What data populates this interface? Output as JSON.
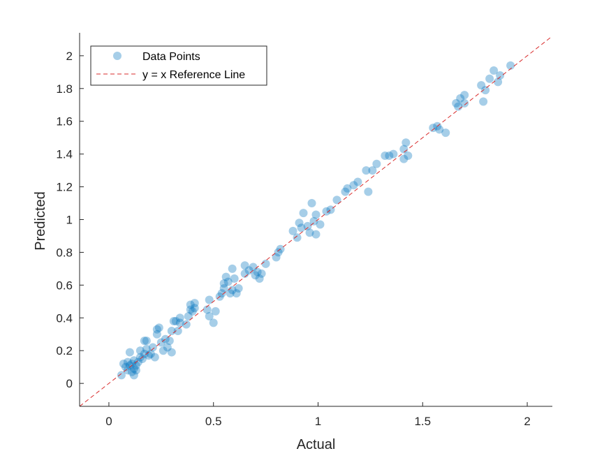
{
  "colors": {
    "points": "#0072BD",
    "reference_line": "#D92B2B",
    "axis": "#262626",
    "background": "#ffffff"
  },
  "chart_data": {
    "type": "scatter",
    "xlabel": "Actual",
    "ylabel": "Predicted",
    "xlim": [
      -0.14,
      2.12
    ],
    "ylim": [
      -0.14,
      2.14
    ],
    "xticks": [
      0,
      0.5,
      1,
      1.5,
      2
    ],
    "xtick_labels": [
      "0",
      "0.5",
      "1",
      "1.5",
      "2"
    ],
    "yticks": [
      0,
      0.2,
      0.4,
      0.6,
      0.8,
      1,
      1.2,
      1.4,
      1.6,
      1.8,
      2
    ],
    "ytick_labels": [
      "0",
      "0.2",
      "0.4",
      "0.6",
      "0.8",
      "1",
      "1.2",
      "1.4",
      "1.6",
      "1.8",
      "2"
    ],
    "grid": false,
    "legend_position": "top-left",
    "series": [
      {
        "name": "Data Points",
        "kind": "scatter",
        "alpha": 0.35,
        "points": [
          [
            0.06,
            0.05
          ],
          [
            0.07,
            0.12
          ],
          [
            0.08,
            0.1
          ],
          [
            0.09,
            0.08
          ],
          [
            0.09,
            0.13
          ],
          [
            0.1,
            0.19
          ],
          [
            0.1,
            0.11
          ],
          [
            0.11,
            0.07
          ],
          [
            0.11,
            0.12
          ],
          [
            0.12,
            0.09
          ],
          [
            0.12,
            0.14
          ],
          [
            0.12,
            0.05
          ],
          [
            0.13,
            0.11
          ],
          [
            0.13,
            0.08
          ],
          [
            0.14,
            0.13
          ],
          [
            0.15,
            0.16
          ],
          [
            0.15,
            0.2
          ],
          [
            0.16,
            0.15
          ],
          [
            0.17,
            0.18
          ],
          [
            0.17,
            0.26
          ],
          [
            0.18,
            0.26
          ],
          [
            0.18,
            0.21
          ],
          [
            0.19,
            0.17
          ],
          [
            0.2,
            0.18
          ],
          [
            0.21,
            0.22
          ],
          [
            0.22,
            0.16
          ],
          [
            0.23,
            0.33
          ],
          [
            0.23,
            0.3
          ],
          [
            0.24,
            0.34
          ],
          [
            0.25,
            0.25
          ],
          [
            0.26,
            0.2
          ],
          [
            0.27,
            0.27
          ],
          [
            0.28,
            0.22
          ],
          [
            0.29,
            0.26
          ],
          [
            0.3,
            0.32
          ],
          [
            0.3,
            0.19
          ],
          [
            0.31,
            0.38
          ],
          [
            0.32,
            0.38
          ],
          [
            0.33,
            0.32
          ],
          [
            0.34,
            0.37
          ],
          [
            0.34,
            0.4
          ],
          [
            0.37,
            0.36
          ],
          [
            0.38,
            0.41
          ],
          [
            0.39,
            0.45
          ],
          [
            0.39,
            0.48
          ],
          [
            0.4,
            0.44
          ],
          [
            0.41,
            0.49
          ],
          [
            0.41,
            0.46
          ],
          [
            0.47,
            0.45
          ],
          [
            0.48,
            0.51
          ],
          [
            0.48,
            0.41
          ],
          [
            0.5,
            0.37
          ],
          [
            0.51,
            0.44
          ],
          [
            0.53,
            0.53
          ],
          [
            0.54,
            0.55
          ],
          [
            0.55,
            0.61
          ],
          [
            0.55,
            0.58
          ],
          [
            0.56,
            0.65
          ],
          [
            0.57,
            0.62
          ],
          [
            0.58,
            0.55
          ],
          [
            0.59,
            0.57
          ],
          [
            0.59,
            0.7
          ],
          [
            0.6,
            0.64
          ],
          [
            0.61,
            0.55
          ],
          [
            0.62,
            0.58
          ],
          [
            0.65,
            0.72
          ],
          [
            0.65,
            0.67
          ],
          [
            0.67,
            0.69
          ],
          [
            0.69,
            0.71
          ],
          [
            0.7,
            0.66
          ],
          [
            0.71,
            0.68
          ],
          [
            0.72,
            0.64
          ],
          [
            0.73,
            0.67
          ],
          [
            0.75,
            0.73
          ],
          [
            0.8,
            0.77
          ],
          [
            0.81,
            0.8
          ],
          [
            0.82,
            0.82
          ],
          [
            0.88,
            0.93
          ],
          [
            0.9,
            0.89
          ],
          [
            0.91,
            0.98
          ],
          [
            0.92,
            0.95
          ],
          [
            0.93,
            1.04
          ],
          [
            0.95,
            0.96
          ],
          [
            0.96,
            0.92
          ],
          [
            0.97,
            1.1
          ],
          [
            0.98,
            0.99
          ],
          [
            0.99,
            1.03
          ],
          [
            0.99,
            0.91
          ],
          [
            1.01,
            0.97
          ],
          [
            1.04,
            1.05
          ],
          [
            1.06,
            1.06
          ],
          [
            1.09,
            1.12
          ],
          [
            1.13,
            1.17
          ],
          [
            1.14,
            1.19
          ],
          [
            1.17,
            1.21
          ],
          [
            1.19,
            1.23
          ],
          [
            1.23,
            1.3
          ],
          [
            1.24,
            1.17
          ],
          [
            1.26,
            1.3
          ],
          [
            1.28,
            1.34
          ],
          [
            1.32,
            1.39
          ],
          [
            1.34,
            1.39
          ],
          [
            1.36,
            1.4
          ],
          [
            1.41,
            1.37
          ],
          [
            1.41,
            1.43
          ],
          [
            1.42,
            1.47
          ],
          [
            1.43,
            1.39
          ],
          [
            1.55,
            1.56
          ],
          [
            1.57,
            1.57
          ],
          [
            1.58,
            1.55
          ],
          [
            1.61,
            1.53
          ],
          [
            1.66,
            1.71
          ],
          [
            1.67,
            1.69
          ],
          [
            1.68,
            1.74
          ],
          [
            1.7,
            1.76
          ],
          [
            1.7,
            1.71
          ],
          [
            1.78,
            1.82
          ],
          [
            1.79,
            1.72
          ],
          [
            1.8,
            1.79
          ],
          [
            1.82,
            1.86
          ],
          [
            1.84,
            1.91
          ],
          [
            1.86,
            1.84
          ],
          [
            1.87,
            1.88
          ],
          [
            1.92,
            1.94
          ]
        ]
      },
      {
        "name": "y = x Reference Line",
        "kind": "line",
        "style": "dashed",
        "x": [
          -0.14,
          2.12
        ],
        "y": [
          -0.14,
          2.12
        ]
      }
    ]
  }
}
